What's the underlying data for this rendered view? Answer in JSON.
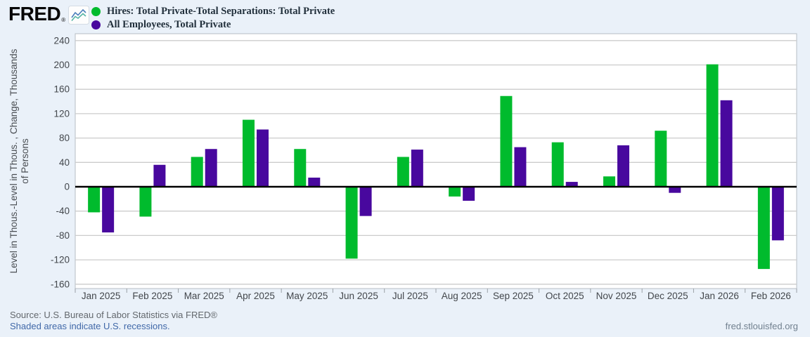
{
  "header": {
    "logo_text": "FRED",
    "logo_registered": "®"
  },
  "chart_data": {
    "type": "bar",
    "title": "",
    "categories": [
      "Jan 2025",
      "Feb 2025",
      "Mar 2025",
      "Apr 2025",
      "May 2025",
      "Jun 2025",
      "Jul 2025",
      "Aug 2025",
      "Sep 2025",
      "Oct 2025",
      "Nov 2025",
      "Dec 2025",
      "Jan 2026",
      "Feb 2026"
    ],
    "series": [
      {
        "name": "Hires: Total Private-Total Separations: Total Private",
        "color": "#00bb2d",
        "values": [
          -42,
          -49,
          49,
          110,
          62,
          -118,
          49,
          -16,
          149,
          73,
          17,
          92,
          201,
          -135
        ]
      },
      {
        "name": "All Employees, Total Private",
        "color": "#48089e",
        "values": [
          -75,
          36,
          62,
          94,
          15,
          -48,
          61,
          -23,
          65,
          8,
          68,
          -10,
          142,
          -88
        ]
      }
    ],
    "xlabel": "",
    "ylabel_lines": [
      "Level in Thous.-Level in Thous. , Change, Thousands",
      "of Persons"
    ],
    "ylim": [
      -160,
      240
    ],
    "ytick_step": 40,
    "grid": true,
    "zero_line": true,
    "legend_position": "top-left"
  },
  "footer": {
    "source": "Source: U.S. Bureau of Labor Statistics via FRED®",
    "recessions_note": "Shaded areas indicate U.S. recessions.",
    "site": "fred.stlouisfed.org"
  },
  "colors": {
    "background": "#eaf1f9",
    "plot_background": "#ffffff",
    "plot_border": "#b7bdc4",
    "grid_line": "#cccccc",
    "zero_line": "#000000",
    "axis_text": "#43474c",
    "ylabel_text": "#4a4e53",
    "tick_mark": "#9aa0a6",
    "legend_text": "#22303c",
    "link_blue": "#4068a8"
  }
}
